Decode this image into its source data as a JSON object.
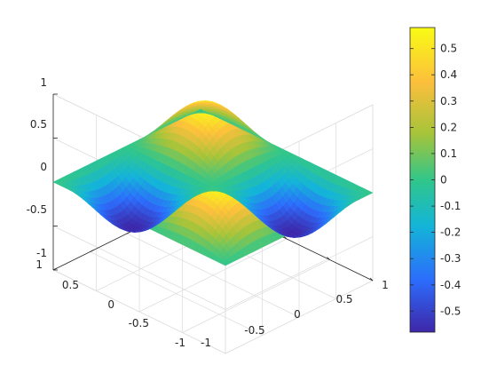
{
  "chart_data": {
    "type": "surface",
    "title": "",
    "xlabel": "",
    "ylabel": "",
    "zlabel": "",
    "xlim": [
      -1,
      1
    ],
    "ylim": [
      -1,
      1
    ],
    "zlim": [
      -1,
      1
    ],
    "x_ticks": [
      "-1",
      "-0.5",
      "0",
      "0.5",
      "1"
    ],
    "y_ticks": [
      "-1",
      "-0.5",
      "0",
      "0.5",
      "1"
    ],
    "z_ticks": [
      "-1",
      "-0.5",
      "0",
      "0.5",
      "1"
    ],
    "grid": true,
    "surface": {
      "function": "0.5*sin(pi*x)*sin(pi*y)",
      "z_min": -0.5,
      "z_max": 0.5,
      "colormap": [
        "#3e26a8",
        "#2c6cfc",
        "#13b5d8",
        "#31c68a",
        "#a5c43a",
        "#fcbf3c",
        "#f9fb15"
      ]
    },
    "colorbar": {
      "limits": [
        -0.58,
        0.58
      ],
      "ticks": [
        "-0.5",
        "-0.4",
        "-0.3",
        "-0.2",
        "-0.1",
        "0",
        "0.1",
        "0.2",
        "0.3",
        "0.4",
        "0.5"
      ],
      "tick_values": [
        -0.5,
        -0.4,
        -0.3,
        -0.2,
        -0.1,
        0,
        0.1,
        0.2,
        0.3,
        0.4,
        0.5
      ]
    }
  }
}
